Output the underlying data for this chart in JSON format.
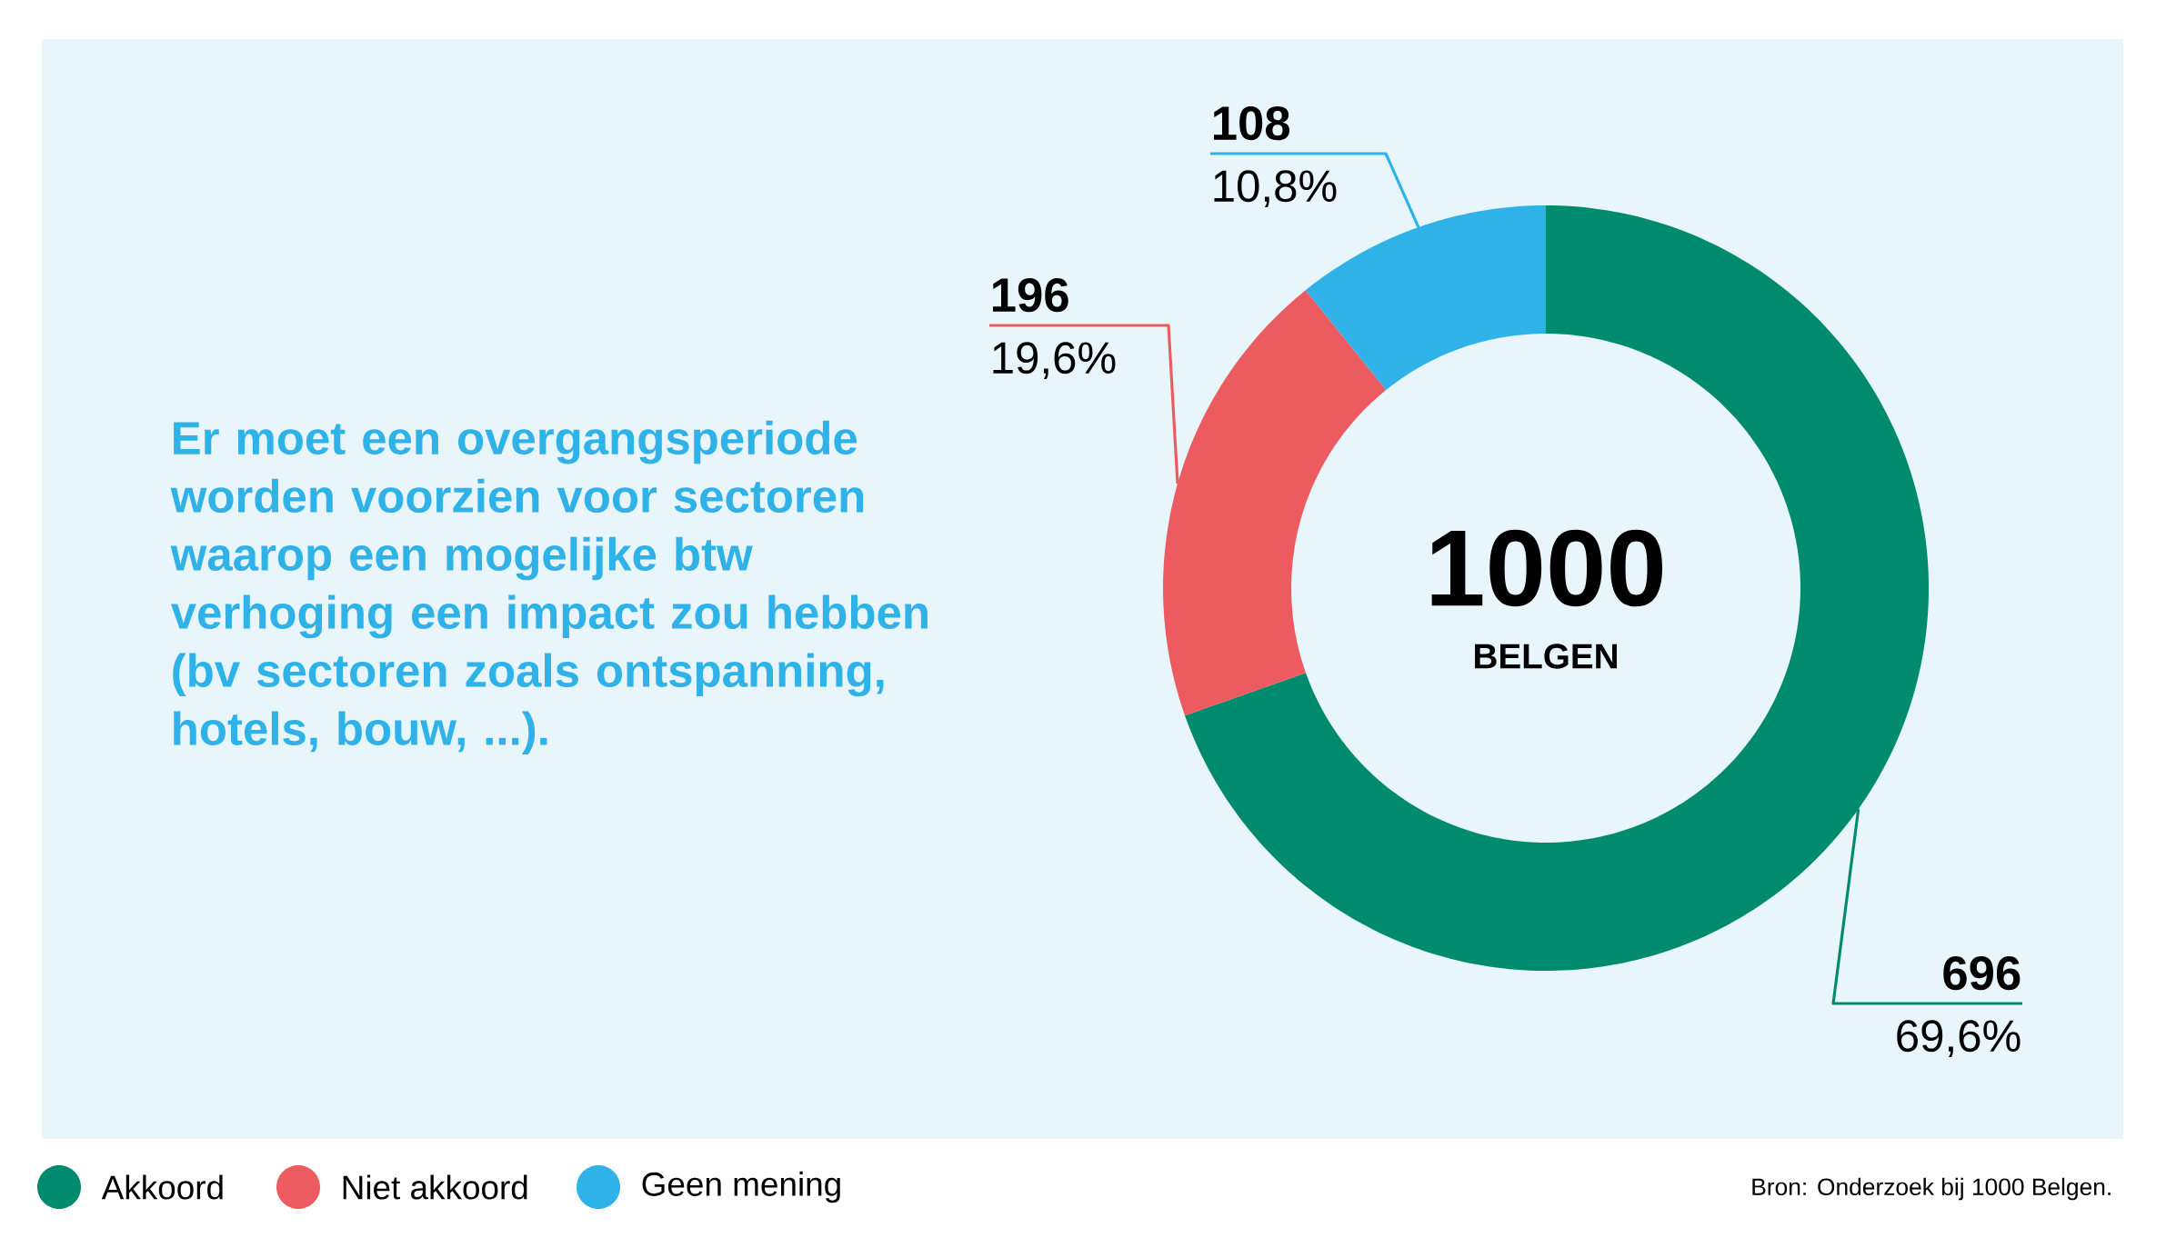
{
  "chart_data": {
    "type": "donut",
    "title": "Er moet een overgangsperiode worden voorzien voor sectoren waarop een mogelijke btw verhoging een impact zou hebben (bv sectoren zoals ontspanning, hotels, bouw, ...).",
    "categories": [
      "Akkoord",
      "Niet akkoord",
      "Geen mening"
    ],
    "values": [
      696,
      196,
      108
    ],
    "colors": [
      "#008a6e",
      "#ec5b60",
      "#2eb2e8"
    ],
    "value_labels": [
      "696",
      "196",
      "108"
    ],
    "legend": "bottom left",
    "annotations": [
      {
        "text": "69,6%",
        "x": "Akkoord"
      },
      {
        "text": "19,6%",
        "x": "Niet akkoord"
      },
      {
        "text": "10,8%",
        "x": "Geen mening"
      },
      "1000",
      "BELGEN",
      "Bron: Onderzoek bij 1000 Belgen."
    ]
  }
}
